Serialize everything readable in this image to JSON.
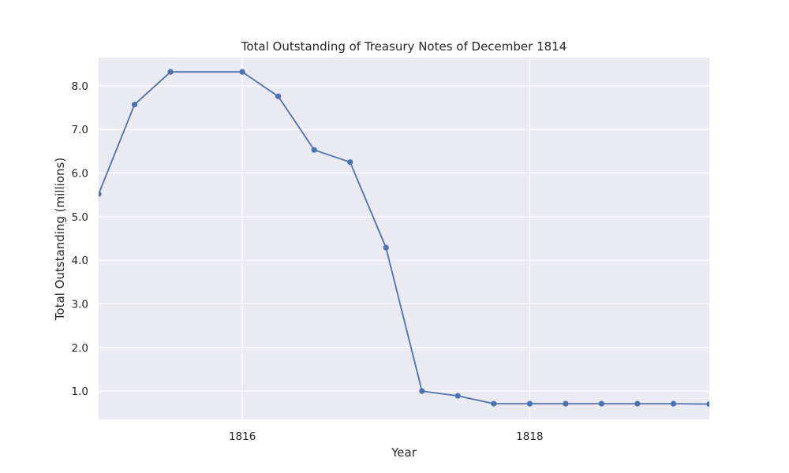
{
  "chart_data": {
    "type": "line",
    "title": "Total Outstanding of Treasury Notes of December 1814",
    "xlabel": "Year",
    "ylabel": "Total Outstanding (millions)",
    "x_is_date": true,
    "x": [
      "1815-01",
      "1815-04",
      "1815-07",
      "1816-01",
      "1816-04",
      "1816-07",
      "1816-10",
      "1817-01",
      "1817-04",
      "1817-07",
      "1817-10",
      "1818-01",
      "1818-04",
      "1818-07",
      "1818-10",
      "1819-01",
      "1819-04"
    ],
    "x_ticks": [
      "1816",
      "1818"
    ],
    "y_ticks": [
      "1.0",
      "2.0",
      "3.0",
      "4.0",
      "5.0",
      "6.0",
      "7.0",
      "8.0"
    ],
    "ylim": [
      0.35,
      8.65
    ],
    "grid": true,
    "series": [
      {
        "values": [
          5.52,
          7.57,
          8.32,
          8.32,
          7.76,
          6.53,
          6.25,
          4.29,
          1.0,
          0.89,
          0.71,
          0.71,
          0.71,
          0.71,
          0.71,
          0.71,
          0.7
        ],
        "color": "#4c72b0"
      }
    ],
    "colors": {
      "plot_bg": "#eaeaf2",
      "grid": "#ffffff",
      "line": "#4c72b0"
    }
  }
}
